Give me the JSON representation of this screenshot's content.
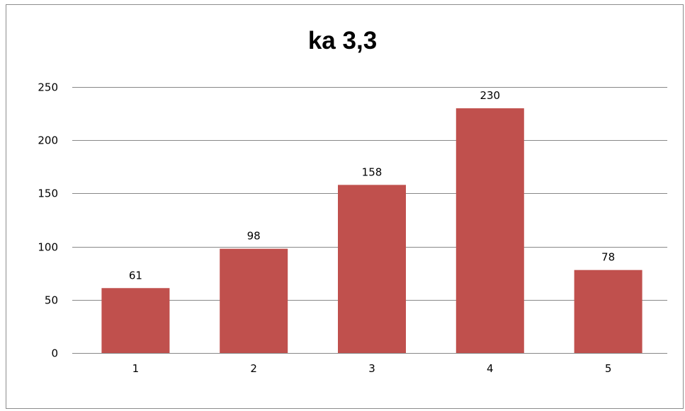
{
  "chart_data": {
    "type": "bar",
    "title": "ka 3,3",
    "categories": [
      "1",
      "2",
      "3",
      "4",
      "5"
    ],
    "values": [
      61,
      98,
      158,
      230,
      78
    ],
    "data_labels": [
      "61",
      "98",
      "158",
      "230",
      "78"
    ],
    "ylim": [
      0,
      250
    ],
    "yticks": [
      0,
      50,
      100,
      150,
      200,
      250
    ],
    "ytick_labels": [
      "0",
      "50",
      "100",
      "150",
      "200",
      "250"
    ],
    "grid": true,
    "legend": "none",
    "bar_color": "#c0504d",
    "grid_color": "#888888"
  }
}
